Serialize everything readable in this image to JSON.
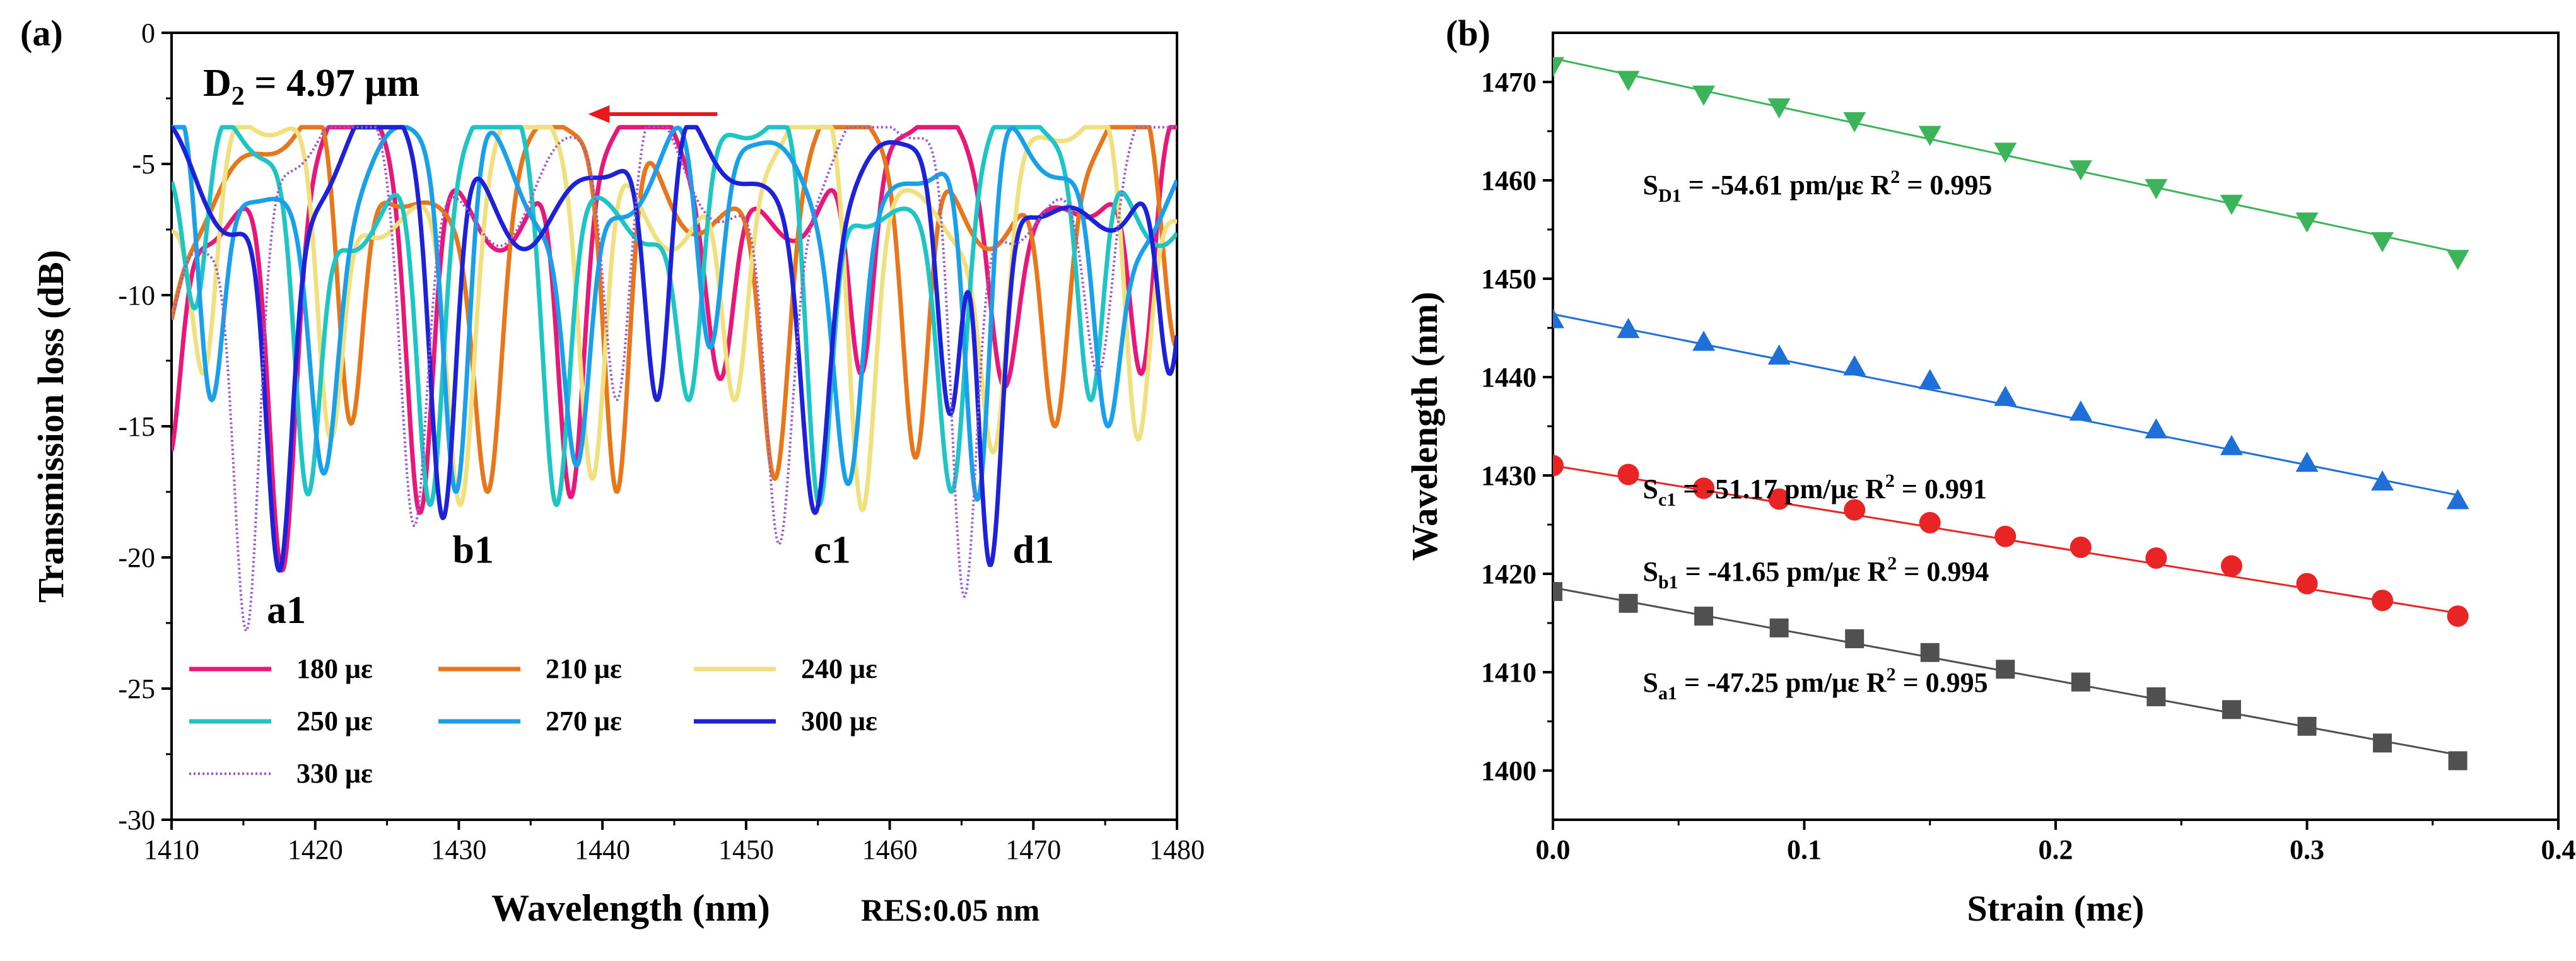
{
  "chart_data": [
    {
      "panel": "(a)",
      "type": "line",
      "xlabel": "Wavelength (nm)",
      "ylabel": "Transmission loss (dB)",
      "xlim": [
        1410,
        1480
      ],
      "ylim": [
        -30,
        0
      ],
      "xticks": [
        1410,
        1420,
        1430,
        1440,
        1450,
        1460,
        1470,
        1480
      ],
      "yticks": [
        0,
        -5,
        -10,
        -15,
        -20,
        -25,
        -30
      ],
      "annotation_d2": "D",
      "annotation_d2_sub": "2",
      "annotation_d2_value": " = 4.97 μm",
      "res_label": "RES:0.05 nm",
      "dip_labels": [
        {
          "text": "a1",
          "x": 1418,
          "y": -22.5
        },
        {
          "text": "b1",
          "x": 1431,
          "y": -20.2
        },
        {
          "text": "c1",
          "x": 1456,
          "y": -20.2
        },
        {
          "text": "d1",
          "x": 1470,
          "y": -20.2
        }
      ],
      "arrow": {
        "from": [
          1448,
          -3.1
        ],
        "to": [
          1439,
          -3.1
        ],
        "color": "#e8181f"
      },
      "series": [
        {
          "name": "180 με",
          "color": "#e8177a",
          "style": "solid",
          "dips": [
            [
              1409.8,
              -16.2
            ],
            [
              1417.7,
              -20.5
            ],
            [
              1427.3,
              -18.3
            ],
            [
              1437.8,
              -17.7
            ],
            [
              1448.2,
              -13.2
            ],
            [
              1458,
              -13
            ],
            [
              1468,
              -13.5
            ],
            [
              1477.5,
              -13
            ]
          ]
        },
        {
          "name": "210 με",
          "color": "#e8761a",
          "style": "solid",
          "dips": [
            [
              1409.3,
              -12
            ],
            [
              1422.5,
              -14.9
            ],
            [
              1432,
              -17.5
            ],
            [
              1441,
              -17.5
            ],
            [
              1452,
              -17
            ],
            [
              1461.8,
              -16.2
            ],
            [
              1471.5,
              -15
            ],
            [
              1480,
              -12
            ]
          ]
        },
        {
          "name": "240 με",
          "color": "#f0e080",
          "style": "solid",
          "dips": [
            [
              1412.2,
              -13
            ],
            [
              1421.1,
              -15.5
            ],
            [
              1430.1,
              -18
            ],
            [
              1439.3,
              -17
            ],
            [
              1449.2,
              -14
            ],
            [
              1458.1,
              -18.2
            ],
            [
              1467.2,
              -16
            ],
            [
              1477.3,
              -15.5
            ]
          ]
        },
        {
          "name": "250 με",
          "color": "#1fc4c4",
          "style": "solid",
          "dips": [
            [
              1411.6,
              -10.5
            ],
            [
              1419.5,
              -17.6
            ],
            [
              1428,
              -18
            ],
            [
              1436.8,
              -18
            ],
            [
              1446,
              -14
            ],
            [
              1455.1,
              -18
            ],
            [
              1464.3,
              -17.5
            ],
            [
              1474,
              -14
            ]
          ]
        },
        {
          "name": "270 με",
          "color": "#1aa0e8",
          "style": "solid",
          "dips": [
            [
              1412.8,
              -14
            ],
            [
              1420.6,
              -16.8
            ],
            [
              1429.8,
              -17.5
            ],
            [
              1438.2,
              -16.5
            ],
            [
              1447.5,
              -12
            ],
            [
              1457.1,
              -17.2
            ],
            [
              1466.1,
              -17.8
            ],
            [
              1475.2,
              -15
            ]
          ]
        },
        {
          "name": "300 με",
          "color": "#1d22d8",
          "style": "solid",
          "dips": [
            [
              1417.5,
              -20.5
            ],
            [
              1428.9,
              -18.5
            ],
            [
              1443.8,
              -14
            ],
            [
              1454.8,
              -18.3
            ],
            [
              1464.2,
              -14.5
            ],
            [
              1467,
              -20.3
            ],
            [
              1479.5,
              -13
            ]
          ]
        },
        {
          "name": "330 με",
          "color": "#9b59d0",
          "style": "dotted",
          "dips": [
            [
              1409.8,
              -11
            ],
            [
              1415.2,
              -22.8
            ],
            [
              1426.9,
              -18.8
            ],
            [
              1441,
              -14
            ],
            [
              1452.3,
              -19.5
            ],
            [
              1465.2,
              -21.5
            ],
            [
              1474.5,
              -13
            ]
          ]
        }
      ]
    },
    {
      "panel": "(b)",
      "type": "scatter",
      "xlabel": "Strain (mε)",
      "ylabel": "Wavelength (nm)",
      "xlim": [
        0,
        0.4
      ],
      "ylim": [
        1395,
        1475
      ],
      "xticks": [
        "0.0",
        "0.1",
        "0.2",
        "0.3",
        "0.4"
      ],
      "yticks": [
        1400,
        1410,
        1420,
        1430,
        1440,
        1450,
        1460,
        1470
      ],
      "x": [
        0,
        0.03,
        0.06,
        0.09,
        0.12,
        0.15,
        0.18,
        0.21,
        0.24,
        0.27,
        0.3,
        0.33,
        0.36
      ],
      "series": [
        {
          "id": "d1",
          "name": "S",
          "sub": "D1",
          "sens": " = -54.61 pm/με",
          "r2": "R",
          "r2_sup": "2",
          "r2_value": " = 0.995",
          "color": "#3cb55a",
          "marker": "triangle-down",
          "y": [
            1471.7,
            1470.3,
            1468.8,
            1467.5,
            1466.1,
            1464.7,
            1463.0,
            1461.2,
            1459.3,
            1457.7,
            1455.9,
            1453.9,
            1452.1
          ],
          "fit": [
            1472.4,
            1452.7
          ],
          "label_pos": [
            0.1,
            1458.6
          ]
        },
        {
          "id": "c1",
          "name": "S",
          "sub": "c1",
          "sens": " = -51.17 pm/με",
          "r2": "R",
          "r2_sup": "2",
          "r2_value": " = 0.991",
          "color": "#1e6fd8",
          "marker": "triangle-up",
          "y": [
            1445.8,
            1444.8,
            1443.5,
            1442.1,
            1441.0,
            1439.6,
            1437.9,
            1436.4,
            1434.6,
            1432.9,
            1431.2,
            1429.3,
            1427.4
          ],
          "fit": [
            1446.4,
            1428.0
          ],
          "label_pos": [
            0.1,
            1427.7
          ]
        },
        {
          "id": "b1",
          "name": "S",
          "sub": "b1",
          "sens": " = -41.65 pm/με",
          "r2": "R",
          "r2_sup": "2",
          "r2_value": " = 0.994",
          "color": "#e82424",
          "marker": "circle",
          "y": [
            1431.0,
            1430.1,
            1428.7,
            1427.6,
            1426.5,
            1425.2,
            1423.8,
            1422.7,
            1421.6,
            1420.8,
            1419.0,
            1417.3,
            1415.7
          ],
          "fit": [
            1431.0,
            1416.0
          ],
          "label_pos": [
            0.1,
            1419.3
          ]
        },
        {
          "id": "a1",
          "name": "S",
          "sub": "a1",
          "sens": " = -47.25 pm/με",
          "r2": "R",
          "r2_sup": "2",
          "r2_value": " = 0.995",
          "color": "#505050",
          "marker": "square",
          "y": [
            1418.2,
            1417.0,
            1415.7,
            1414.5,
            1413.4,
            1412.0,
            1410.3,
            1409.0,
            1407.5,
            1406.2,
            1404.5,
            1402.8,
            1401.0
          ],
          "fit": [
            1418.6,
            1401.6
          ],
          "label_pos": [
            0.1,
            1408.0
          ]
        }
      ]
    }
  ]
}
